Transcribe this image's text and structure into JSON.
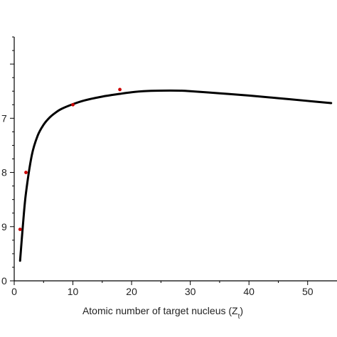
{
  "chart_data": {
    "type": "line",
    "title": "",
    "xlabel": "Atomic number of target nucleus (Z",
    "xlabel_subscript": "t",
    "xlabel_suffix": ")",
    "ylabel": "",
    "xlim": [
      0,
      55
    ],
    "ylim": [
      10.0,
      5.5
    ],
    "y_axis_inverted": true,
    "x_ticks": [
      0,
      10,
      20,
      30,
      40,
      50
    ],
    "y_ticks": [
      7,
      8,
      9
    ],
    "y_tick_labels": [
      "7",
      "8",
      "9"
    ],
    "y_tick_label_cropped": "0",
    "grid": false,
    "legend": "none",
    "series": [
      {
        "type": "line",
        "color": "#000000",
        "x": [
          1,
          1.5,
          2,
          3,
          4,
          5,
          6,
          7,
          8,
          10,
          12,
          15,
          18,
          20,
          22,
          25,
          28,
          30,
          35,
          40,
          45,
          50,
          54
        ],
        "y": [
          9.63,
          8.95,
          8.38,
          7.68,
          7.32,
          7.12,
          6.99,
          6.9,
          6.83,
          6.74,
          6.67,
          6.6,
          6.55,
          6.52,
          6.5,
          6.49,
          6.49,
          6.5,
          6.54,
          6.58,
          6.63,
          6.68,
          6.72
        ]
      },
      {
        "type": "scatter",
        "color": "#cc0000",
        "x": [
          1,
          2,
          10,
          18
        ],
        "y": [
          9.05,
          8.0,
          6.75,
          6.47
        ]
      }
    ]
  }
}
